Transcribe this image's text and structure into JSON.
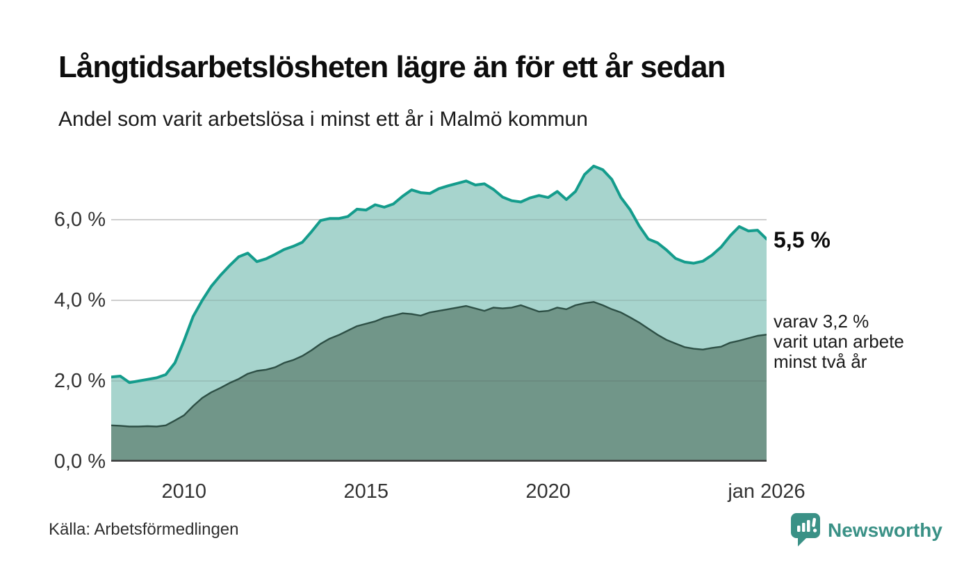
{
  "header": {
    "title": "Långtidsarbetslösheten lägre än för ett år sedan",
    "subtitle": "Andel som varit arbetslösa i minst ett år i Malmö kommun"
  },
  "annotations": {
    "latest_total": "5,5 %",
    "latest_secondary": [
      "varav 3,2 %",
      "varit utan arbete",
      "minst två år"
    ]
  },
  "footer": {
    "source": "Källa: Arbetsförmedlingen",
    "brand": "Newsworthy",
    "brand_color": "#3a9186"
  },
  "chart_data": {
    "type": "area",
    "title": "Långtidsarbetslösheten lägre än för ett år sedan",
    "subtitle": "Andel som varit arbetslösa i minst ett år i Malmö kommun",
    "xlabel": "",
    "ylabel": "",
    "legend": "none (direct labels at right edge)",
    "grid": true,
    "grid_color": "#e3e3e3",
    "baseline_color": "#3a3a3a",
    "xlim": [
      2008,
      2026
    ],
    "ylim": [
      0,
      7.62
    ],
    "x": [
      2008,
      2008.25,
      2008.5,
      2008.75,
      2009,
      2009.25,
      2009.5,
      2009.75,
      2010,
      2010.25,
      2010.5,
      2010.75,
      2011,
      2011.25,
      2011.5,
      2011.75,
      2012,
      2012.25,
      2012.5,
      2012.75,
      2013,
      2013.25,
      2013.5,
      2013.75,
      2014,
      2014.25,
      2014.5,
      2014.75,
      2015,
      2015.25,
      2015.5,
      2015.75,
      2016,
      2016.25,
      2016.5,
      2016.75,
      2017,
      2017.25,
      2017.5,
      2017.75,
      2018,
      2018.25,
      2018.5,
      2018.75,
      2019,
      2019.25,
      2019.5,
      2019.75,
      2020,
      2020.25,
      2020.5,
      2020.75,
      2021,
      2021.25,
      2021.5,
      2021.75,
      2022,
      2022.25,
      2022.5,
      2022.75,
      2023,
      2023.25,
      2023.5,
      2023.75,
      2024,
      2024.25,
      2024.5,
      2024.75,
      2025,
      2025.25,
      2025.5,
      2025.75,
      2026
    ],
    "series": [
      {
        "name": "Andel arbetslösa minst ett år",
        "latest_label": "5,5 %",
        "color": "#149c8c",
        "fill": "#a7d4cd",
        "line_width": 4,
        "values": [
          2.1,
          2.12,
          1.96,
          2.0,
          2.04,
          2.08,
          2.16,
          2.45,
          3.0,
          3.6,
          4.0,
          4.35,
          4.62,
          4.86,
          5.08,
          5.17,
          4.96,
          5.03,
          5.14,
          5.26,
          5.34,
          5.44,
          5.7,
          5.98,
          6.03,
          6.03,
          6.08,
          6.26,
          6.24,
          6.37,
          6.31,
          6.39,
          6.58,
          6.74,
          6.67,
          6.65,
          6.77,
          6.84,
          6.9,
          6.96,
          6.86,
          6.89,
          6.75,
          6.56,
          6.47,
          6.44,
          6.54,
          6.6,
          6.55,
          6.7,
          6.5,
          6.7,
          7.12,
          7.33,
          7.24,
          7.0,
          6.55,
          6.25,
          5.85,
          5.52,
          5.43,
          5.25,
          5.04,
          4.95,
          4.92,
          4.97,
          5.12,
          5.32,
          5.6,
          5.83,
          5.72,
          5.74,
          5.52
        ]
      },
      {
        "name": "Andel utan arbete minst två år",
        "latest_label": "3,2 %",
        "color": "#2d4f45",
        "fill": "#719689",
        "line_width": 2.4,
        "values": [
          0.9,
          0.89,
          0.87,
          0.87,
          0.88,
          0.87,
          0.9,
          1.02,
          1.15,
          1.38,
          1.58,
          1.72,
          1.83,
          1.95,
          2.05,
          2.18,
          2.25,
          2.28,
          2.34,
          2.45,
          2.52,
          2.62,
          2.76,
          2.92,
          3.05,
          3.14,
          3.25,
          3.36,
          3.42,
          3.48,
          3.57,
          3.62,
          3.68,
          3.66,
          3.62,
          3.7,
          3.74,
          3.78,
          3.82,
          3.86,
          3.8,
          3.74,
          3.82,
          3.8,
          3.82,
          3.88,
          3.8,
          3.72,
          3.74,
          3.82,
          3.78,
          3.88,
          3.93,
          3.96,
          3.88,
          3.78,
          3.7,
          3.58,
          3.45,
          3.3,
          3.15,
          3.02,
          2.93,
          2.84,
          2.8,
          2.78,
          2.82,
          2.85,
          2.95,
          3.0,
          3.06,
          3.12,
          3.15
        ]
      }
    ],
    "yticks": [
      {
        "value": 0,
        "label": "0,0 %"
      },
      {
        "value": 2,
        "label": "2,0 %"
      },
      {
        "value": 4,
        "label": "4,0 %"
      },
      {
        "value": 6,
        "label": "6,0 %"
      }
    ],
    "xticks": [
      {
        "value": 2010,
        "label": "2010"
      },
      {
        "value": 2015,
        "label": "2015"
      },
      {
        "value": 2020,
        "label": "2020"
      },
      {
        "value": 2026,
        "label": "jan 2026"
      }
    ]
  }
}
